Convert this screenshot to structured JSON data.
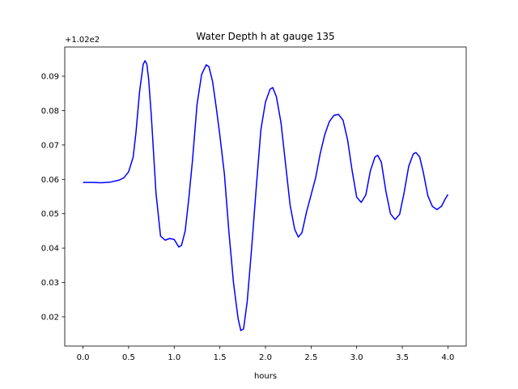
{
  "chart_data": {
    "type": "line",
    "title": "Water Depth h at gauge 135",
    "xlabel": "hours",
    "ylabel": "",
    "y_offset_label": "+1.02e2",
    "y_offset": 102,
    "xlim": [
      -0.2,
      4.2
    ],
    "ylim": [
      0.0115,
      0.0985
    ],
    "xticks": [
      0.0,
      0.5,
      1.0,
      1.5,
      2.0,
      2.5,
      3.0,
      3.5,
      4.0
    ],
    "xtick_labels": [
      "0.0",
      "0.5",
      "1.0",
      "1.5",
      "2.0",
      "2.5",
      "3.0",
      "3.5",
      "4.0"
    ],
    "yticks": [
      0.02,
      0.03,
      0.04,
      0.05,
      0.06,
      0.07,
      0.08,
      0.09
    ],
    "ytick_labels": [
      "0.02",
      "0.03",
      "0.04",
      "0.05",
      "0.06",
      "0.07",
      "0.08",
      "0.09"
    ],
    "grid": false,
    "series": [
      {
        "color": "#0000ff",
        "x": [
          0.0,
          0.1,
          0.2,
          0.3,
          0.4,
          0.45,
          0.5,
          0.55,
          0.58,
          0.62,
          0.66,
          0.68,
          0.7,
          0.72,
          0.75,
          0.8,
          0.85,
          0.9,
          0.95,
          1.0,
          1.05,
          1.08,
          1.12,
          1.16,
          1.2,
          1.25,
          1.3,
          1.35,
          1.38,
          1.42,
          1.46,
          1.5,
          1.55,
          1.6,
          1.65,
          1.7,
          1.73,
          1.76,
          1.8,
          1.85,
          1.9,
          1.95,
          2.0,
          2.05,
          2.08,
          2.12,
          2.17,
          2.22,
          2.27,
          2.32,
          2.36,
          2.4,
          2.45,
          2.5,
          2.55,
          2.6,
          2.65,
          2.7,
          2.75,
          2.8,
          2.85,
          2.9,
          2.95,
          3.0,
          3.05,
          3.1,
          3.15,
          3.2,
          3.23,
          3.27,
          3.32,
          3.37,
          3.42,
          3.47,
          3.52,
          3.57,
          3.62,
          3.65,
          3.69,
          3.73,
          3.78,
          3.83,
          3.88,
          3.93,
          3.97,
          4.0
        ],
        "y": [
          0.0591,
          0.0591,
          0.059,
          0.0592,
          0.0598,
          0.0605,
          0.0622,
          0.0665,
          0.0735,
          0.0855,
          0.0935,
          0.0945,
          0.0935,
          0.089,
          0.078,
          0.056,
          0.0435,
          0.0423,
          0.0428,
          0.0425,
          0.0403,
          0.0408,
          0.045,
          0.0545,
          0.0655,
          0.0818,
          0.0905,
          0.0933,
          0.0928,
          0.0885,
          0.081,
          0.0728,
          0.0615,
          0.0445,
          0.0298,
          0.0195,
          0.016,
          0.0165,
          0.0245,
          0.0405,
          0.058,
          0.0745,
          0.0825,
          0.0862,
          0.0867,
          0.084,
          0.0765,
          0.0645,
          0.0525,
          0.0455,
          0.0432,
          0.0445,
          0.0505,
          0.0555,
          0.0605,
          0.0675,
          0.073,
          0.0768,
          0.0786,
          0.0789,
          0.0772,
          0.0715,
          0.0625,
          0.0548,
          0.0533,
          0.0555,
          0.0625,
          0.0665,
          0.067,
          0.065,
          0.0565,
          0.05,
          0.0483,
          0.0498,
          0.0562,
          0.0638,
          0.0674,
          0.0678,
          0.0665,
          0.062,
          0.0552,
          0.0521,
          0.0512,
          0.0522,
          0.0543,
          0.0556
        ]
      }
    ]
  }
}
